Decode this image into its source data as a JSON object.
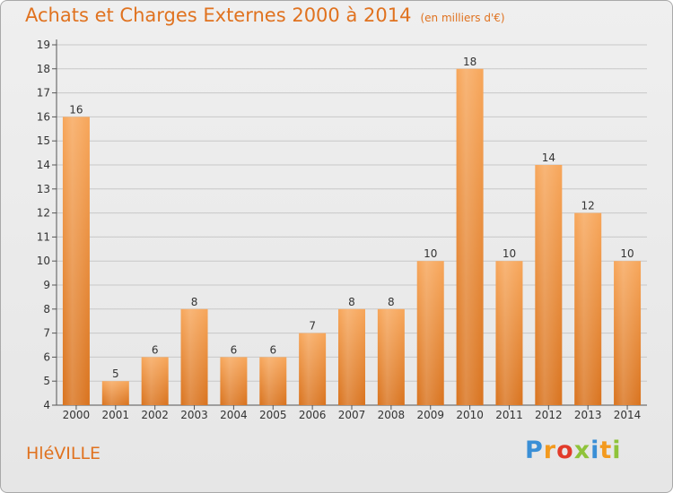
{
  "header": {
    "title": "Achats et Charges Externes 2000 à 2014",
    "subtitle": "(en milliers d'€)"
  },
  "footer": {
    "place": "HléVILLE",
    "logo_letters": [
      "P",
      "r",
      "o",
      "x",
      "i",
      "t",
      "i"
    ],
    "logo_colors": [
      "#3a8fd6",
      "#f39a1e",
      "#e23b2a",
      "#8fc33a",
      "#3a8fd6",
      "#f39a1e",
      "#8fc33a"
    ]
  },
  "colors": {
    "bar_top": "#f7a65a",
    "bar_bottom": "#d9731e",
    "grid": "#c8c8c8",
    "axis": "#555555",
    "accent": "#e0721f"
  },
  "chart_data": {
    "type": "bar",
    "title": "Achats et Charges Externes 2000 à 2014",
    "subtitle": "(en milliers d'€)",
    "categories": [
      "2000",
      "2001",
      "2002",
      "2003",
      "2004",
      "2005",
      "2006",
      "2007",
      "2008",
      "2009",
      "2010",
      "2011",
      "2012",
      "2013",
      "2014"
    ],
    "values": [
      16,
      5,
      6,
      8,
      6,
      6,
      7,
      8,
      8,
      10,
      18,
      10,
      14,
      12,
      10
    ],
    "yticks": [
      4,
      5,
      6,
      7,
      8,
      9,
      10,
      11,
      12,
      13,
      14,
      15,
      16,
      17,
      18,
      19
    ],
    "ylim": [
      4,
      19
    ],
    "xlabel": "",
    "ylabel": "",
    "grid": true,
    "data_labels": true
  }
}
